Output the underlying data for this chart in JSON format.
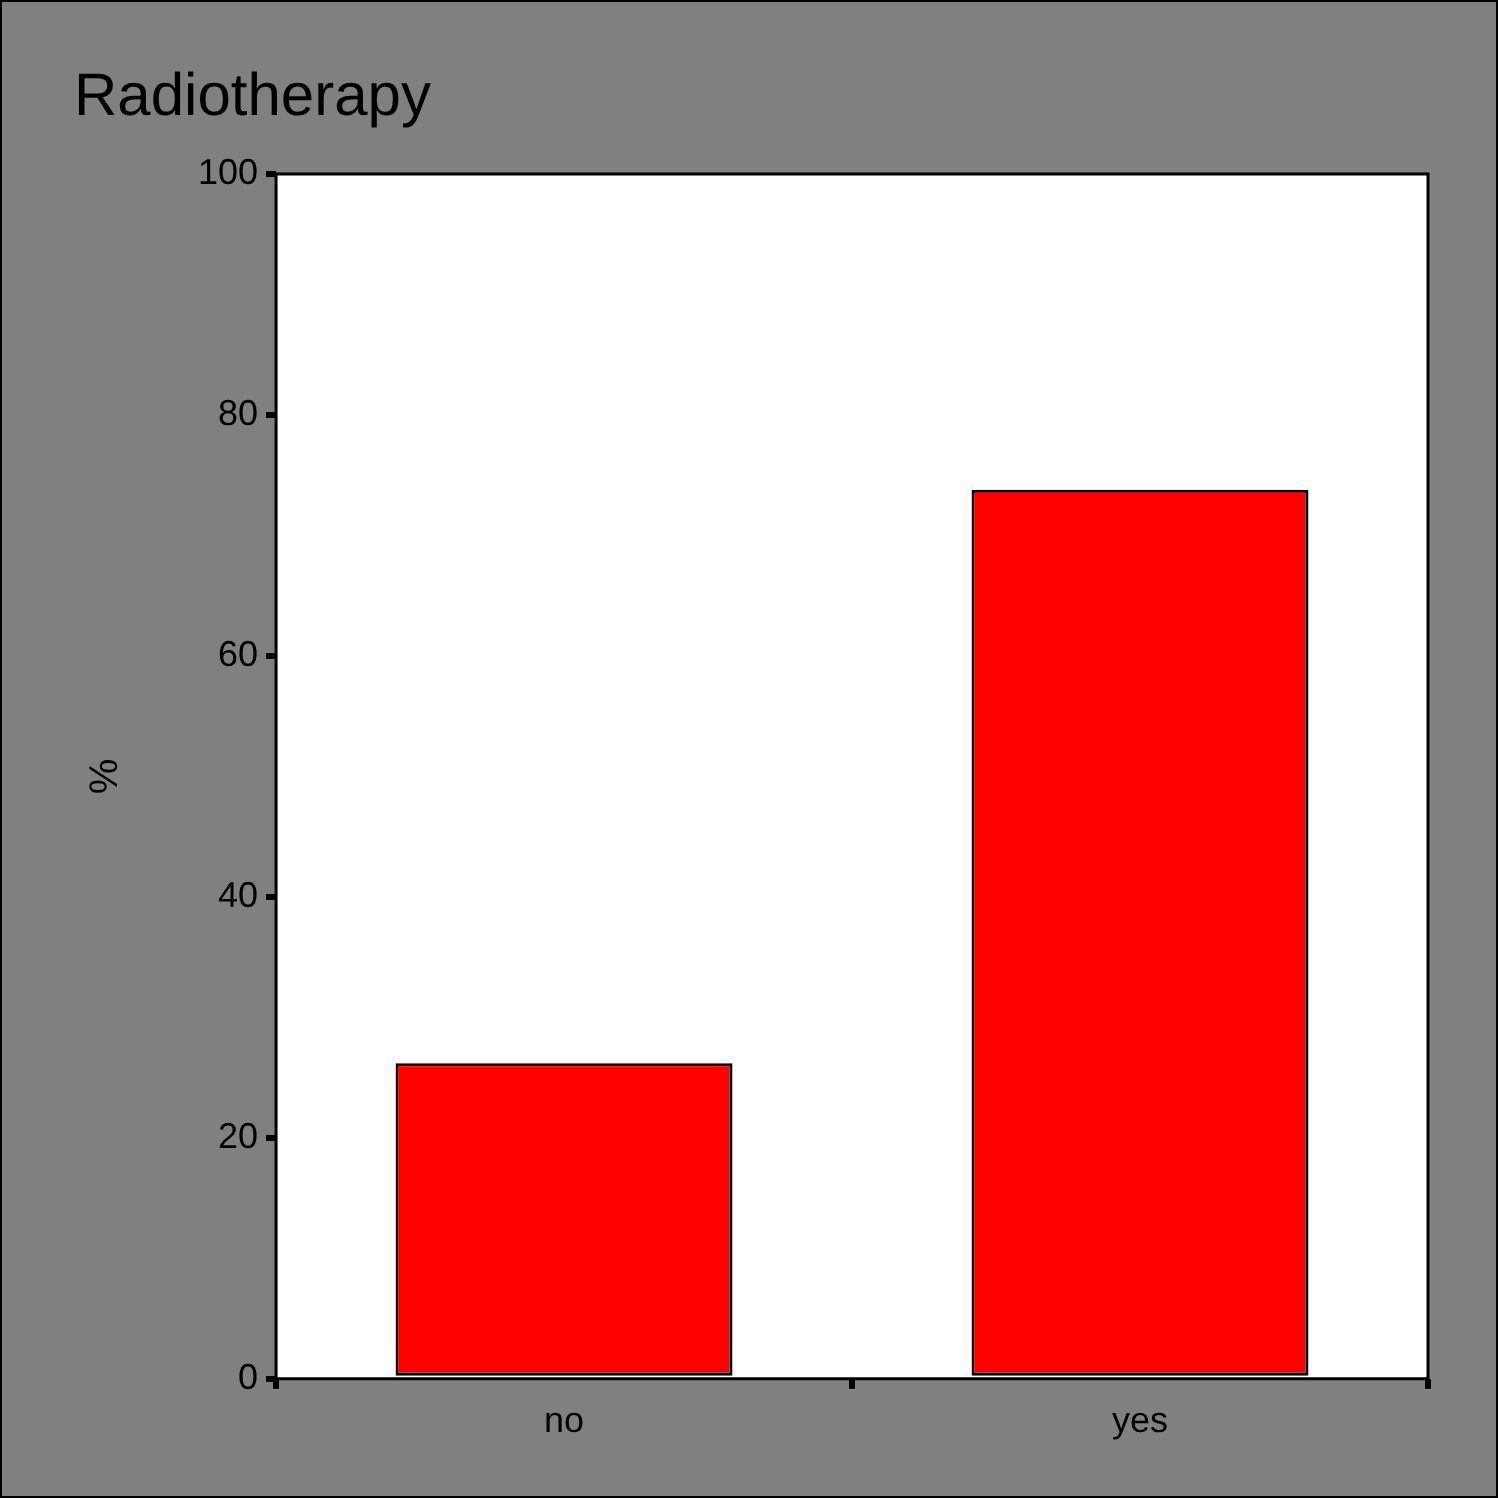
{
  "chart_data": {
    "type": "bar",
    "title": "Radiotherapy",
    "ylabel": "%",
    "categories": [
      "no",
      "yes"
    ],
    "values": [
      26.2,
      73.8
    ],
    "color": "#ff0000",
    "ylim": [
      0,
      100
    ],
    "yticks": [
      0,
      20,
      40,
      60,
      80,
      100
    ],
    "grid": false,
    "legend": false
  }
}
